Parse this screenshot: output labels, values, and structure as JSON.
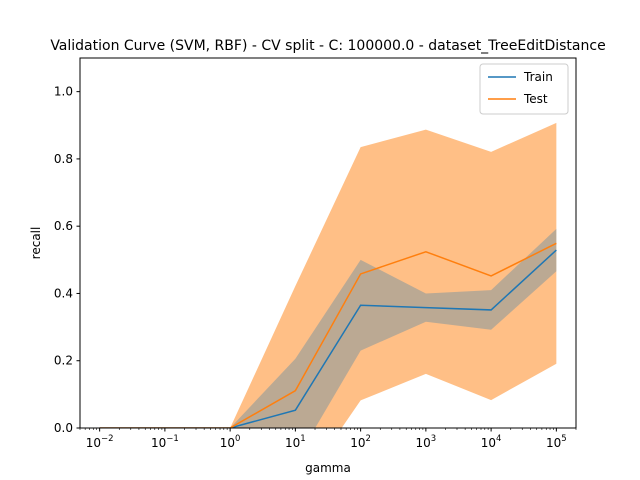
{
  "chart_data": {
    "type": "line",
    "title": "Validation Curve (SVM, RBF) - CV split - C: 100000.0 - dataset_TreeEditDistance",
    "xlabel": "gamma",
    "ylabel": "recall",
    "xscale": "log",
    "xlim": [
      0.005,
      200000
    ],
    "ylim": [
      0.0,
      1.1
    ],
    "x": [
      0.01,
      0.1,
      1,
      10,
      100,
      1000,
      10000,
      100000
    ],
    "x_tick_labels": [
      "10^-2",
      "10^-1",
      "10^0",
      "10^1",
      "10^2",
      "10^3",
      "10^4",
      "10^5"
    ],
    "y_ticks": [
      "0.0",
      "0.2",
      "0.4",
      "0.6",
      "0.8",
      "1.0"
    ],
    "legend_position": "top-right",
    "series": [
      {
        "name": "Train",
        "color": "#1f77b4",
        "values": [
          0.0,
          0.0,
          0.0,
          0.053,
          0.365,
          0.358,
          0.351,
          0.529
        ],
        "band_lower": [
          0.0,
          0.0,
          0.0,
          -0.1,
          0.23,
          0.316,
          0.292,
          0.466
        ],
        "band_upper": [
          0.0,
          0.0,
          0.0,
          0.206,
          0.5,
          0.4,
          0.41,
          0.592
        ]
      },
      {
        "name": "Test",
        "color": "#ff7f0e",
        "values": [
          0.0,
          0.0,
          0.0,
          0.111,
          0.458,
          0.524,
          0.452,
          0.549
        ],
        "band_lower": [
          0.0,
          0.0,
          0.0,
          -0.2,
          0.082,
          0.161,
          0.083,
          0.191
        ],
        "band_upper": [
          0.0,
          0.0,
          0.0,
          0.422,
          0.835,
          0.887,
          0.821,
          0.907
        ]
      }
    ]
  }
}
